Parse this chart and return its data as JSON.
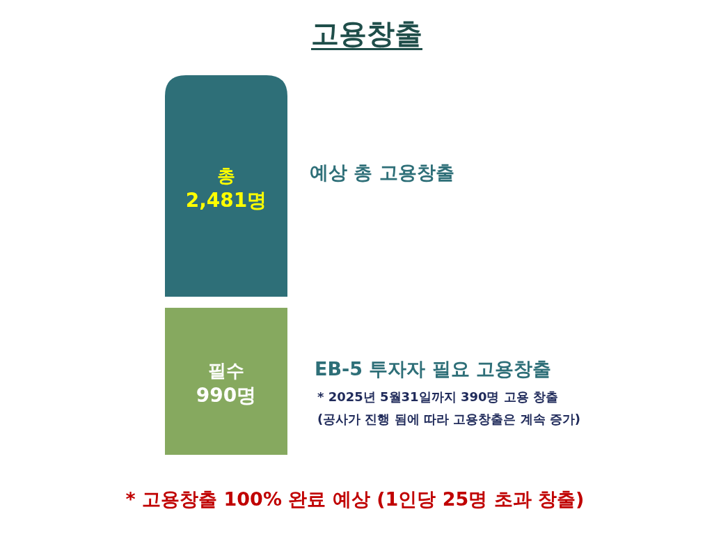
{
  "chart_data": {
    "type": "other",
    "title": "고용창출",
    "categories": [
      "총",
      "필수"
    ],
    "values": [
      2481,
      990
    ],
    "value_labels": [
      "2,481명",
      "990명"
    ],
    "colors": [
      "#2e6f78",
      "#86a95f"
    ],
    "annotations": [
      "예상 총 고용창출",
      "EB-5 투자자 필요 고용창출",
      "* 2025년 5월31일까지 390명 고용 창출",
      "(공사가 진행 됨에 따라 고용창출은 계속 증가)",
      "* 고용창출 100% 완료 예상 (1인당 25명 초과 창출)"
    ]
  }
}
